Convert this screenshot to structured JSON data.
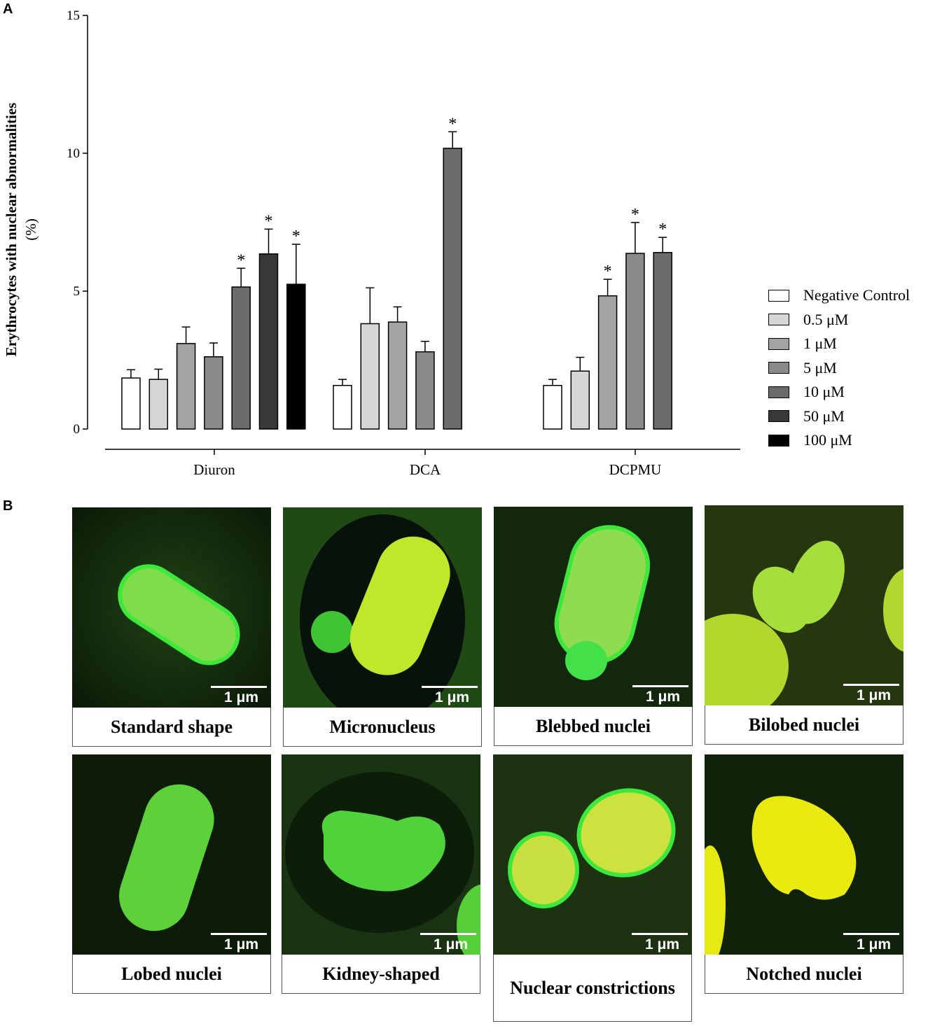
{
  "panel_a_label": "A",
  "panel_b_label": "B",
  "chart_data": {
    "type": "bar",
    "ylabel_line1": "Erythrocytes with nuclear abnormalities",
    "ylabel_line2": "(%)",
    "ylim": [
      0,
      15
    ],
    "yticks": [
      "0",
      "5",
      "10",
      "15"
    ],
    "groups": [
      {
        "name": "Diuron",
        "values": [
          1.85,
          1.8,
          3.1,
          2.62,
          5.15,
          6.35,
          5.25
        ],
        "errors": [
          0.3,
          0.37,
          0.6,
          0.5,
          0.68,
          0.9,
          1.45
        ],
        "significant": [
          false,
          false,
          false,
          false,
          true,
          true,
          true
        ]
      },
      {
        "name": "DCA",
        "values": [
          1.58,
          3.82,
          3.88,
          2.8,
          10.18
        ],
        "errors": [
          0.22,
          1.3,
          0.55,
          0.38,
          0.6
        ],
        "significant": [
          false,
          false,
          false,
          false,
          true
        ]
      },
      {
        "name": "DCPMU",
        "values": [
          1.58,
          2.1,
          4.83,
          6.37,
          6.4
        ],
        "errors": [
          0.22,
          0.5,
          0.6,
          1.12,
          0.55
        ],
        "significant": [
          false,
          false,
          true,
          true,
          true
        ]
      }
    ],
    "series": [
      {
        "name": "Negative Control",
        "color": "#ffffff"
      },
      {
        "name": "0.5 μM",
        "color": "#d6d6d6"
      },
      {
        "name": "1 μM",
        "color": "#a3a3a3"
      },
      {
        "name": "5 μM",
        "color": "#8a8a8a"
      },
      {
        "name": "10 μM",
        "color": "#6b6b6b"
      },
      {
        "name": "50 μM",
        "color": "#383838"
      },
      {
        "name": "100 μM",
        "color": "#000000"
      }
    ],
    "significance_marker": "*",
    "legend_position": "right"
  },
  "micrographs": [
    {
      "caption": "Standard shape",
      "scale": "1 μm"
    },
    {
      "caption": "Micronucleus",
      "scale": "1 μm"
    },
    {
      "caption": "Blebbed nuclei",
      "scale": "1 μm"
    },
    {
      "caption": "Bilobed nuclei",
      "scale": "1 μm"
    },
    {
      "caption": "Lobed nuclei",
      "scale": "1 μm"
    },
    {
      "caption": "Kidney-shaped",
      "scale": "1 μm"
    },
    {
      "caption": "Nuclear constrictions",
      "scale": "1 μm"
    },
    {
      "caption": "Notched nuclei",
      "scale": "1 μm"
    }
  ]
}
